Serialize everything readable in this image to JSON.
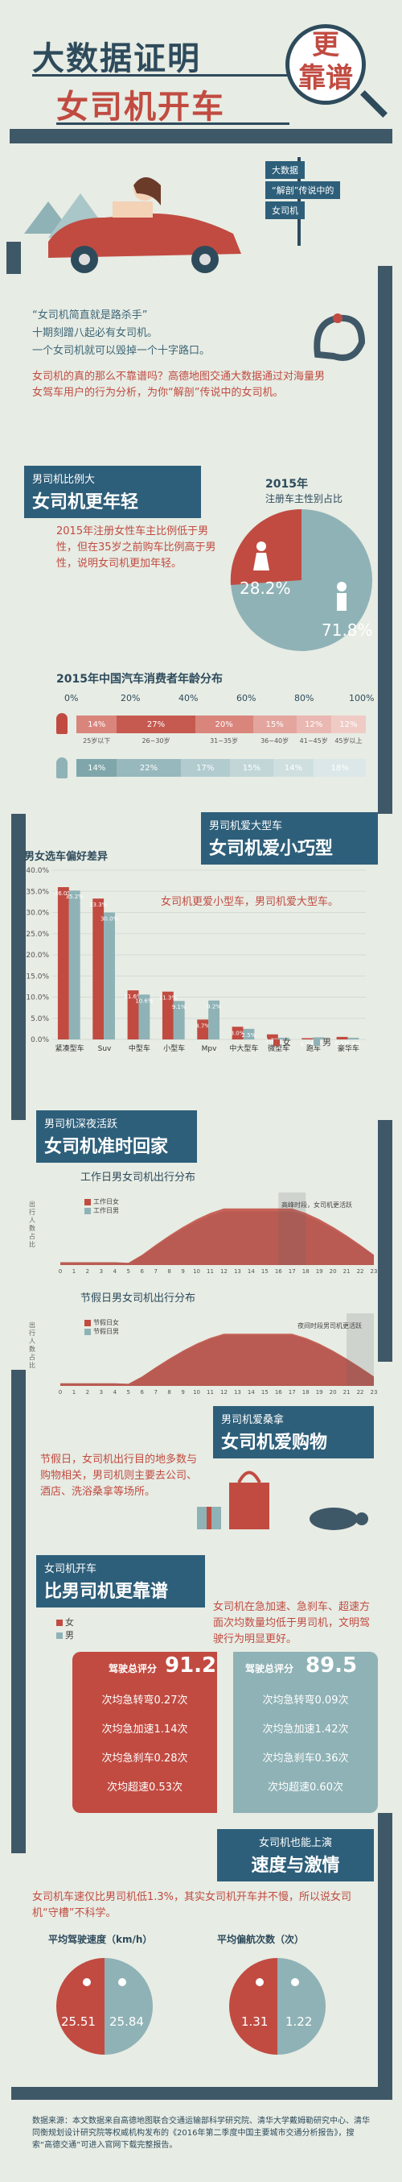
{
  "header": {
    "title_line1": "大数据证明",
    "title_line2": "女司机开车",
    "badge_top": "更",
    "badge_bottom": "靠谱"
  },
  "signs": [
    "大数据",
    "“解剖”传说中的",
    "女司机"
  ],
  "intro": {
    "quote": "“女司机简直就是路杀手”",
    "line2": "十期刻蹭八起必有女司机。",
    "line3": "一个女司机就可以毁掉一个十字路口。",
    "question": "女司机的真的那么不靠谱吗？高德地图交通大数据通过对海量男女驾车用户的行为分析，为你“解剖”传说中的女司机。"
  },
  "section1": {
    "small": "男司机比例大",
    "big": "女司机更年轻",
    "desc": "2015年注册女性车主比例低于男性，但在35岁之前购车比例高于男性，说明女司机更加年轻。",
    "pie_title_year": "2015年",
    "pie_title": "注册车主性别占比",
    "female_pct": "28.2%",
    "male_pct": "71.8%",
    "age_title": "2015年中国汽车消费者年龄分布",
    "axis": [
      "0%",
      "20%",
      "40%",
      "60%",
      "80%",
      "100%"
    ],
    "age_labels": [
      "25岁以下",
      "26~30岁",
      "31~35岁",
      "36~40岁",
      "41~45岁",
      "45岁以上"
    ],
    "female_ages": [
      14,
      27,
      20,
      15,
      12,
      12
    ],
    "male_ages": [
      14,
      22,
      17,
      15,
      14,
      18
    ],
    "female_age_text": [
      "14%",
      "27%",
      "20%",
      "15%",
      "12%",
      "12%"
    ],
    "male_age_text": [
      "14%",
      "22%",
      "17%",
      "15%",
      "14%",
      "18%"
    ]
  },
  "section2": {
    "small": "男司机爱大型车",
    "big": "女司机爱小巧型",
    "chart_title": "男女选车偏好差异",
    "desc": "女司机更爱小型车，男司机爱大型车。",
    "legend_female": "女",
    "legend_male": "男",
    "y_ticks": [
      "40.0%",
      "35.0%",
      "30.0%",
      "25.0%",
      "20.0%",
      "15.0%",
      "10.0%",
      "5.0%",
      "0.0%"
    ],
    "chart_data": {
      "type": "bar",
      "categories": [
        "紧凑型车",
        "Suv",
        "中型车",
        "小型车",
        "Mpv",
        "中大型车",
        "微型车",
        "跑车",
        "豪华车"
      ],
      "series": [
        {
          "name": "女",
          "values": [
            36.0,
            33.3,
            11.6,
            11.3,
            4.7,
            3.0,
            1.2,
            0.3,
            0.6
          ]
        },
        {
          "name": "男",
          "values": [
            35.2,
            30.0,
            10.6,
            9.1,
            9.2,
            2.5,
            0.4,
            0.5,
            0.4
          ]
        }
      ],
      "ylim": [
        0,
        40
      ]
    }
  },
  "section3": {
    "small": "男司机深夜活跃",
    "big": "女司机准时回家",
    "weekday_title": "工作日男女司机出行分布",
    "holiday_title": "节假日男女司机出行分布",
    "legend_f": "工作日女",
    "legend_m": "工作日男",
    "legend_hf": "节假日女",
    "legend_hm": "节假日男",
    "ylabel": "出行人数占比",
    "weekday_note": "高峰时段，女司机更活跃",
    "holiday_note": "夜间时段男司机更活跃",
    "hours": [
      "0",
      "1",
      "2",
      "3",
      "4",
      "5",
      "6",
      "7",
      "8",
      "9",
      "10",
      "11",
      "12",
      "13",
      "14",
      "15",
      "16",
      "17",
      "18",
      "19",
      "20",
      "21",
      "22",
      "23"
    ]
  },
  "section4": {
    "small": "男司机爱桑拿",
    "big": "女司机爱购物",
    "desc": "节假日，女司机出行目的地多数与购物相关，男司机则主要去公司、酒店、洗浴桑拿等场所。"
  },
  "section5": {
    "small": "女司机开车",
    "big": "比男司机更靠谱",
    "desc": "女司机在急加速、急刹车、超速方面次均数量均低于男司机，文明驾驶行为明显更好。",
    "legend_f": "女",
    "legend_m": "男",
    "female_label": "驾驶总评分",
    "female_score": "91.2",
    "male_label": "驾驶总评分",
    "male_score": "89.5",
    "female_rows": [
      "次均急转弯0.27次",
      "次均急加速1.14次",
      "次均急刹车0.28次",
      "次均超速0.53次"
    ],
    "male_rows": [
      "次均急转弯0.09次",
      "次均急加速1.42次",
      "次均急刹车0.36次",
      "次均超速0.60次"
    ]
  },
  "section6": {
    "small": "女司机也能上演",
    "big": "速度与激情",
    "desc": "女司机车速仅比男司机低1.3%，其实女司机开车并不慢，所以说女司机“守槽”不科学。",
    "speed_title": "平均驾驶速度（km/h）",
    "nav_title": "平均偏航次数（次）",
    "speed_f": "25.51",
    "speed_m": "25.84",
    "nav_f": "1.31",
    "nav_m": "1.22"
  },
  "footer": "数据来源：本文数据来自高德地图联合交通运输部科学研究院、清华大学戴姆勒研究中心、清华同衡规划设计研究院等权威机构发布的《2016年第二季度中国主要城市交通分析报告》，搜索“高德交通”可进入官网下载完整报告。",
  "colors": {
    "female": "#c14b41",
    "male": "#8fb2b6",
    "road": "#3f5868",
    "banner": "#2e5f7a"
  }
}
